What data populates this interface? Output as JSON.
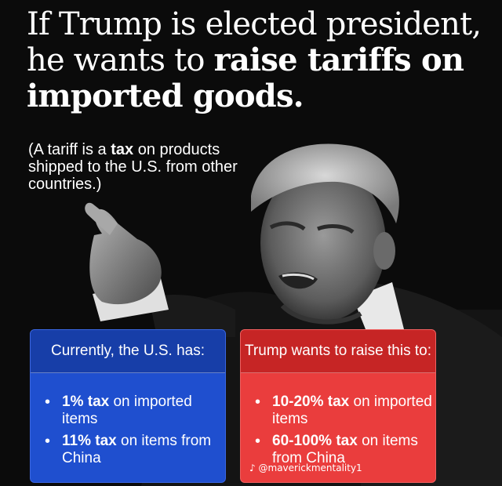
{
  "headline": {
    "line1": "If Trump is elected president,",
    "line2_plain": "he wants to ",
    "line2_bold": "raise tariffs on",
    "line3_bold": "imported goods."
  },
  "subtext": {
    "part1": "(A tariff is a ",
    "bold": "tax",
    "part2": " on products shipped to the U.S. from other countries.)"
  },
  "current_box": {
    "title": "Currently, the U.S. has:",
    "items": [
      {
        "bold": "1% tax",
        "rest": " on imported items"
      },
      {
        "bold": "11% tax",
        "rest": " on items from China"
      }
    ]
  },
  "proposal_box": {
    "title": "Trump wants to raise this to:",
    "items": [
      {
        "bold": "10-20% tax",
        "rest": " on imported items"
      },
      {
        "bold": "60-100% tax",
        "rest": " on items from China"
      }
    ]
  },
  "watermark": {
    "icon": "tiktok-icon",
    "handle": "@maverickmentality1"
  },
  "colors": {
    "background": "#0b0b0b",
    "blue_box": "#1f4fcf",
    "red_box": "#ea3d3d",
    "text": "#ffffff"
  }
}
